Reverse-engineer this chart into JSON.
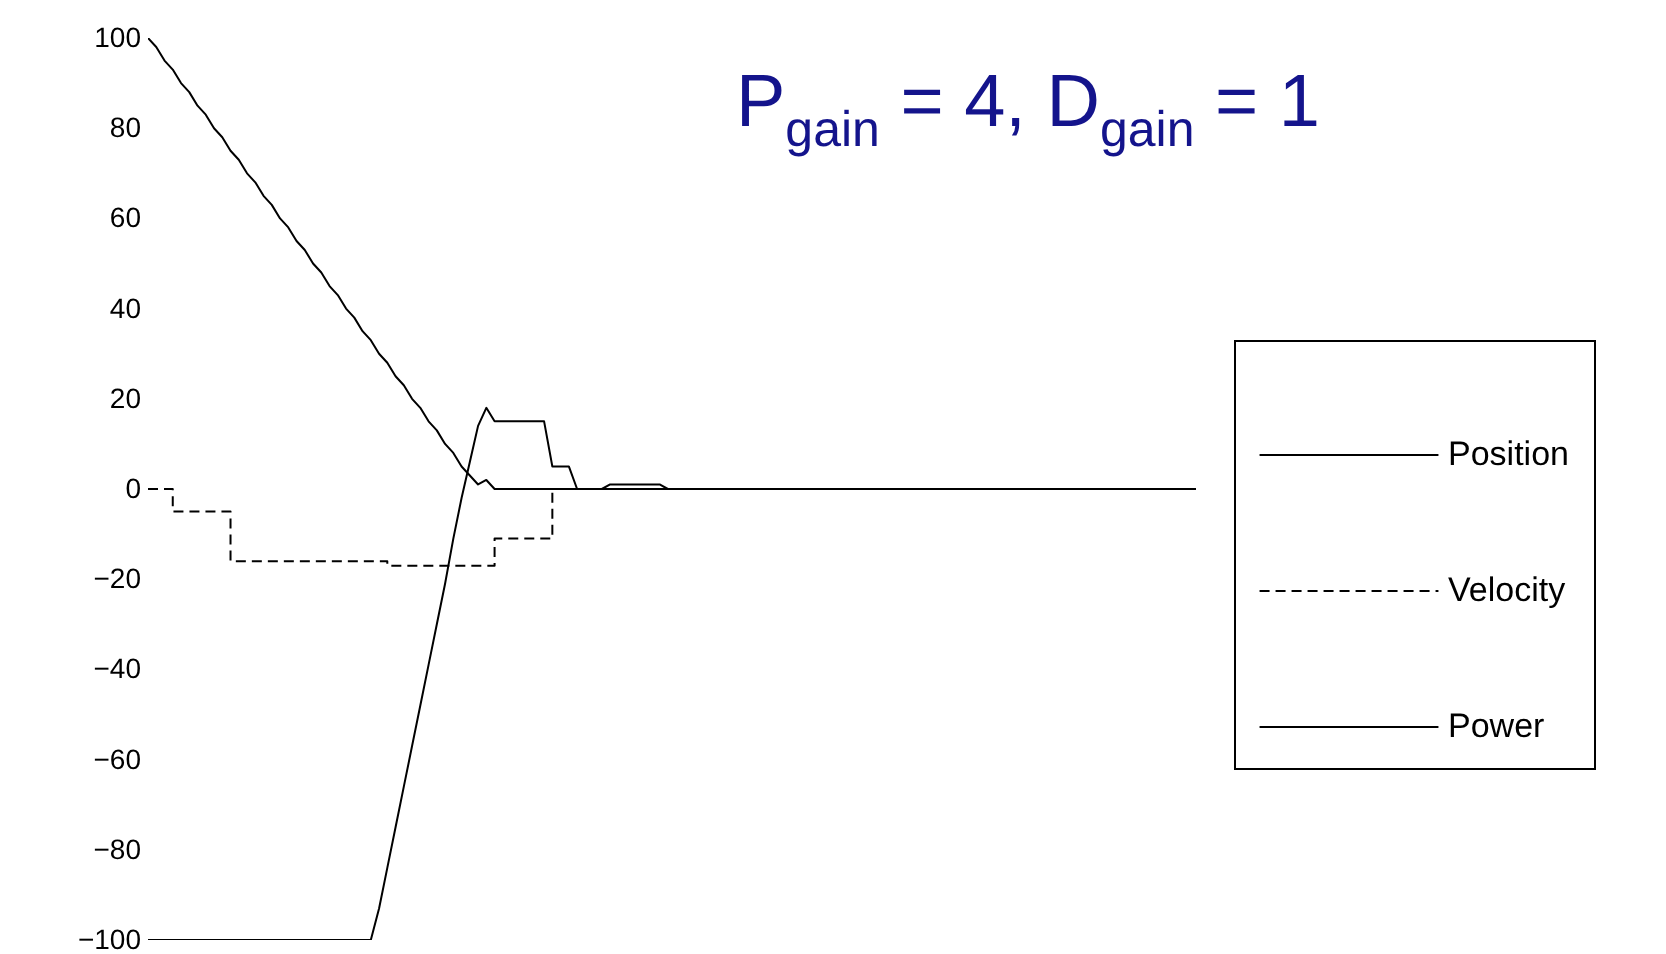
{
  "chart_data": {
    "type": "line",
    "title": "P$_{gain}$ = 4, D$_{gain}$ = 1",
    "categories": [
      null,
      null,
      null,
      null,
      null,
      null,
      null,
      null,
      null,
      null,
      null,
      null,
      null,
      null,
      null,
      null,
      null,
      null,
      null,
      null,
      null,
      null,
      null,
      null,
      null,
      null,
      null,
      null,
      null,
      null,
      null,
      null,
      null,
      null,
      null,
      null,
      null,
      null,
      null,
      null,
      null,
      null,
      null,
      null,
      null,
      null,
      null,
      null,
      null,
      null,
      null,
      null,
      null,
      null,
      null,
      null,
      null,
      null,
      null,
      null,
      null,
      null,
      null,
      null,
      null,
      null,
      null,
      null,
      null,
      null,
      null,
      null,
      null,
      null,
      null,
      null,
      null,
      null,
      null,
      null,
      null,
      null,
      null,
      null,
      null,
      null,
      null,
      null,
      null,
      null,
      null,
      null,
      null,
      null,
      null,
      null,
      null,
      null,
      null,
      null,
      null,
      null,
      null,
      null,
      null,
      null,
      null,
      null,
      null,
      null,
      null,
      null,
      null,
      null,
      null,
      null,
      null,
      null,
      null,
      null,
      null,
      null,
      null,
      null,
      null,
      null,
      null,
      null
    ],
    "series": [
      {
        "name": "Position",
        "color": "#000000",
        "line_style": "solid",
        "values": [
          100,
          98,
          95,
          93,
          90,
          88,
          85,
          83,
          80,
          78,
          75,
          73,
          70,
          68,
          65,
          63,
          60,
          58,
          55,
          53,
          50,
          48,
          45,
          43,
          40,
          38,
          35,
          33,
          30,
          28,
          25,
          23,
          20,
          18,
          15,
          13,
          10,
          8,
          5,
          3,
          1,
          2,
          0,
          0,
          0,
          0,
          0,
          0,
          0,
          0,
          0,
          0,
          0,
          0,
          0,
          0,
          1,
          1,
          1,
          1,
          1,
          1,
          1,
          0,
          0,
          0,
          0,
          0,
          0,
          0,
          0,
          0,
          0,
          0,
          0,
          0,
          0,
          0,
          0,
          0,
          0,
          0,
          0,
          0,
          0,
          0,
          0,
          0,
          0,
          0,
          0,
          0,
          0,
          0,
          0,
          0,
          0,
          0,
          0,
          0,
          0,
          0,
          0,
          0,
          0,
          0,
          0,
          0,
          0,
          0,
          0,
          0,
          0,
          0,
          0,
          0,
          0,
          0,
          0,
          0,
          0,
          0,
          0,
          0,
          0,
          0,
          0,
          0
        ]
      },
      {
        "name": "Velocity",
        "color": "#000000",
        "type": "step",
        "line_style": "dashed",
        "values": [
          0,
          0,
          0,
          -5,
          -5,
          -5,
          -5,
          -5,
          -5,
          -5,
          -16,
          -16,
          -16,
          -16,
          -16,
          -16,
          -16,
          -16,
          -16,
          -16,
          -16,
          -16,
          -16,
          -16,
          -16,
          -16,
          -16,
          -16,
          -16,
          -17,
          -17,
          -17,
          -17,
          -17,
          -17,
          -17,
          -17,
          -17,
          -17,
          -17,
          -17,
          -17,
          -11,
          -11,
          -11,
          -11,
          -11,
          -11,
          -11,
          0,
          0,
          0,
          0,
          0,
          0,
          0,
          0,
          0,
          0,
          0,
          0,
          0,
          0,
          0,
          0,
          0,
          0,
          0,
          0,
          0,
          0,
          0,
          0,
          0,
          0,
          0,
          0,
          0,
          0,
          0,
          0,
          0,
          0,
          0,
          0,
          0,
          0,
          0,
          0,
          0,
          0,
          0,
          0,
          0,
          0,
          0,
          0,
          0,
          0,
          0,
          0,
          0,
          0,
          0,
          0,
          0,
          0,
          0,
          0,
          0,
          0,
          0,
          0,
          0,
          0,
          0,
          0,
          0,
          0,
          0,
          0,
          0,
          0,
          0,
          0,
          0,
          0,
          0
        ]
      },
      {
        "name": "Power",
        "color": "#000000",
        "line_style": "solid",
        "values": [
          -100,
          -100,
          -100,
          -100,
          -100,
          -100,
          -100,
          -100,
          -100,
          -100,
          -100,
          -100,
          -100,
          -100,
          -100,
          -100,
          -100,
          -100,
          -100,
          -100,
          -100,
          -100,
          -100,
          -100,
          -100,
          -100,
          -100,
          -100,
          -93,
          -84,
          -75,
          -66,
          -57,
          -48,
          -39,
          -30,
          -21,
          -11,
          -2,
          6,
          14,
          18,
          15,
          15,
          15,
          15,
          15,
          15,
          15,
          5,
          5,
          5,
          0,
          0,
          0,
          0,
          0,
          0,
          0,
          0,
          0,
          0,
          0,
          0,
          0,
          0,
          0,
          0,
          0,
          0,
          0,
          0,
          0,
          0,
          0,
          0,
          0,
          0,
          0,
          0,
          0,
          0,
          0,
          0,
          0,
          0,
          0,
          0,
          0,
          0,
          0,
          0,
          0,
          0,
          0,
          0,
          0,
          0,
          0,
          0,
          0,
          0,
          0,
          0,
          0,
          0,
          0,
          0,
          0,
          0,
          0,
          0,
          0,
          0,
          0,
          0,
          0,
          0,
          0,
          0,
          0,
          0,
          0,
          0,
          0,
          0,
          0,
          0
        ]
      }
    ],
    "ylim": [
      -100,
      100
    ],
    "yticks": [
      -100,
      -80,
      -60,
      -40,
      -20,
      0,
      20,
      40,
      60,
      80,
      100
    ],
    "tick_labels": "y",
    "legend": "right"
  }
}
